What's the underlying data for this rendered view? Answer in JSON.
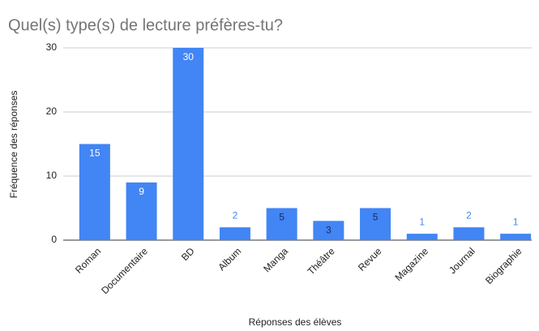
{
  "chart_data": {
    "type": "bar",
    "title": "Quel(s) type(s) de lecture préfères-tu?",
    "x_label": "Réponses des élèves",
    "y_label": "Fréquence des réponses",
    "categories": [
      "Roman",
      "Documentaire",
      "BD",
      "Album",
      "Manga",
      "Théâtre",
      "Revue",
      "Magazine",
      "Journal",
      "Biographie"
    ],
    "values": [
      15,
      9,
      30,
      2,
      5,
      3,
      5,
      1,
      2,
      1
    ],
    "color": "#4285f4",
    "ylim": [
      0,
      30
    ],
    "yticks": [
      0,
      10,
      20,
      30
    ],
    "grid": true
  }
}
